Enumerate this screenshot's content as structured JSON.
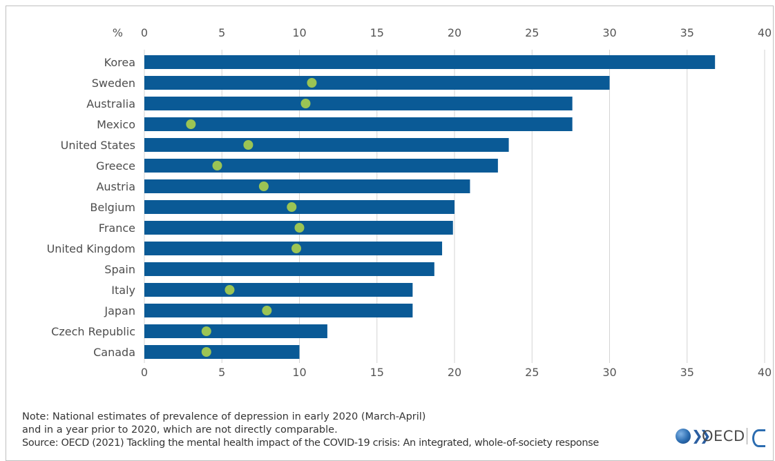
{
  "chart_data": {
    "type": "bar",
    "orientation": "horizontal",
    "unit_label": "%",
    "xlim": [
      0,
      40
    ],
    "x_ticks": [
      0,
      5,
      10,
      15,
      20,
      25,
      30,
      35,
      40
    ],
    "grid": true,
    "categories": [
      "Korea",
      "Sweden",
      "Australia",
      "Mexico",
      "United States",
      "Greece",
      "Austria",
      "Belgium",
      "France",
      "United Kingdom",
      "Spain",
      "Italy",
      "Japan",
      "Czech Republic",
      "Canada"
    ],
    "series": [
      {
        "kind": "bar",
        "color": "#0a5a96",
        "values": [
          36.8,
          30.0,
          27.6,
          27.6,
          23.5,
          22.8,
          21.0,
          20.0,
          19.9,
          19.2,
          18.7,
          17.3,
          17.3,
          11.8,
          10.0
        ]
      },
      {
        "kind": "point",
        "color": "#9bc454",
        "values": [
          null,
          10.8,
          10.4,
          3.0,
          6.7,
          4.7,
          7.7,
          9.5,
          10.0,
          9.8,
          null,
          5.5,
          7.9,
          4.0,
          4.0
        ]
      }
    ]
  },
  "notes": {
    "line1": "Note: National estimates of prevalence of depression in early 2020 (March-April)",
    "line2": "and in a year prior to 2020, which are not directly comparable.",
    "source": "Source: OECD (2021) Tackling the mental health impact of the COVID-19 crisis: An integrated, whole-of-society response"
  },
  "logo": {
    "text": "OECD",
    "chevrons": "❯❯",
    "globe_color": "#2b6cb0"
  }
}
